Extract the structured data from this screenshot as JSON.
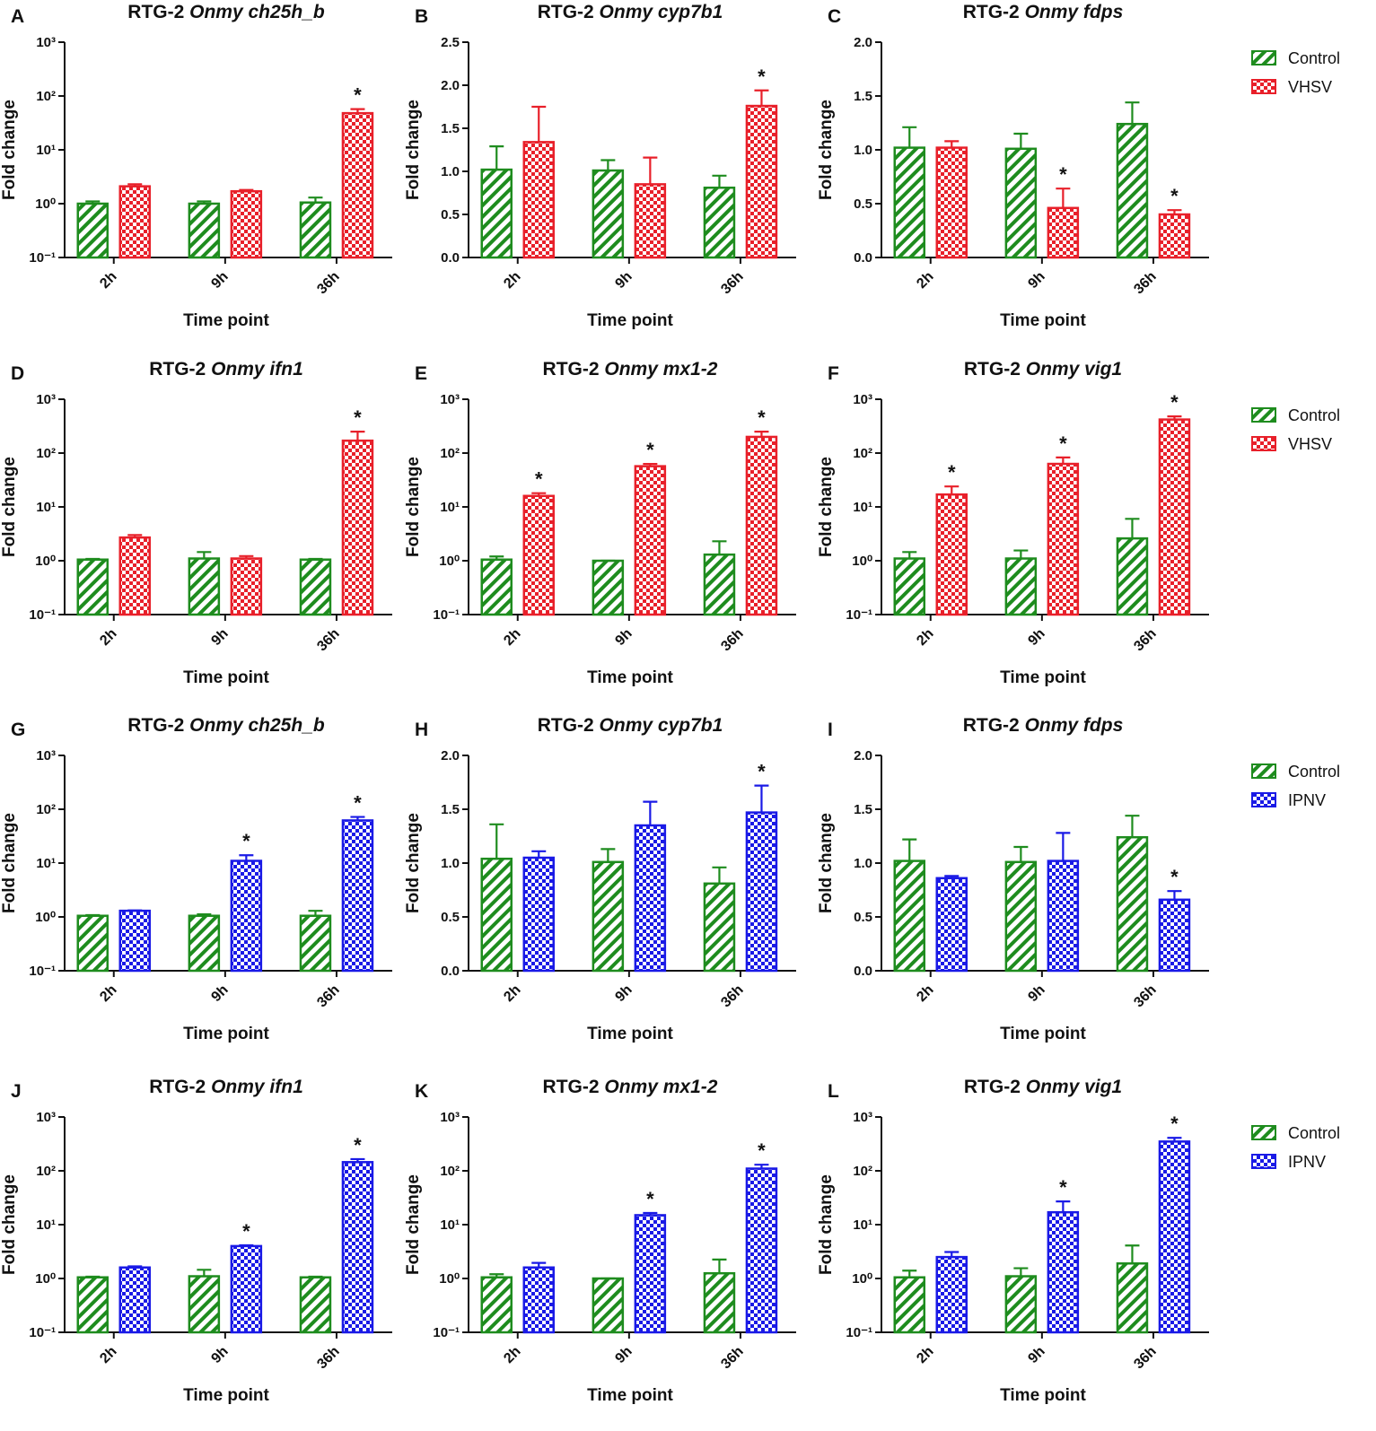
{
  "chart_data": [
    {
      "type": "bar",
      "panel": "A",
      "title": "RTG-2",
      "title_italic": "Onmy ch25h_b",
      "ylabel": "Fold change",
      "xlabel": "Time point",
      "log": true,
      "categories": [
        "2h",
        "9h",
        "36h"
      ],
      "ylim": [
        0.1,
        1000
      ],
      "yticks": [
        {
          "value": 0.1,
          "label": "10⁻¹"
        },
        {
          "value": 1,
          "label": "10⁰"
        },
        {
          "value": 10,
          "label": "10¹"
        },
        {
          "value": 100,
          "label": "10²"
        },
        {
          "value": 1000,
          "label": "10³"
        }
      ],
      "series": [
        {
          "name": "Control",
          "color": "#1e8c1e",
          "pattern": "hatch",
          "values": [
            1.0,
            1.0,
            1.05
          ],
          "errors": [
            0.1,
            0.1,
            0.25
          ],
          "annotations": [
            null,
            null,
            null
          ]
        },
        {
          "name": "VHSV",
          "color": "#e8202a",
          "pattern": "checker",
          "values": [
            2.1,
            1.7,
            48
          ],
          "errors": [
            0.2,
            0.1,
            9
          ],
          "annotations": [
            null,
            null,
            "*"
          ]
        }
      ]
    },
    {
      "type": "bar",
      "panel": "B",
      "title": "RTG-2",
      "title_italic": "Onmy cyp7b1",
      "ylabel": "Fold change",
      "xlabel": "Time point",
      "log": false,
      "categories": [
        "2h",
        "9h",
        "36h"
      ],
      "ylim": [
        0,
        2.5
      ],
      "yticks": [
        {
          "value": 0,
          "label": "0.0"
        },
        {
          "value": 0.5,
          "label": "0.5"
        },
        {
          "value": 1,
          "label": "1.0"
        },
        {
          "value": 1.5,
          "label": "1.5"
        },
        {
          "value": 2,
          "label": "2.0"
        },
        {
          "value": 2.5,
          "label": "2.5"
        }
      ],
      "series": [
        {
          "name": "Control",
          "color": "#1e8c1e",
          "pattern": "hatch",
          "values": [
            1.02,
            1.01,
            0.81
          ],
          "errors": [
            0.27,
            0.12,
            0.14
          ],
          "annotations": [
            null,
            null,
            null
          ]
        },
        {
          "name": "VHSV",
          "color": "#e8202a",
          "pattern": "checker",
          "values": [
            1.34,
            0.85,
            1.76
          ],
          "errors": [
            0.41,
            0.31,
            0.18
          ],
          "annotations": [
            null,
            null,
            "*"
          ]
        }
      ]
    },
    {
      "type": "bar",
      "panel": "C",
      "title": "RTG-2",
      "title_italic": "Onmy fdps",
      "ylabel": "Fold change",
      "xlabel": "Time point",
      "log": false,
      "legend": "right",
      "categories": [
        "2h",
        "9h",
        "36h"
      ],
      "ylim": [
        0,
        2
      ],
      "yticks": [
        {
          "value": 0,
          "label": "0.0"
        },
        {
          "value": 0.5,
          "label": "0.5"
        },
        {
          "value": 1,
          "label": "1.0"
        },
        {
          "value": 1.5,
          "label": "1.5"
        },
        {
          "value": 2,
          "label": "2.0"
        }
      ],
      "series": [
        {
          "name": "Control",
          "color": "#1e8c1e",
          "pattern": "hatch",
          "values": [
            1.02,
            1.01,
            1.24
          ],
          "errors": [
            0.19,
            0.14,
            0.2
          ],
          "annotations": [
            null,
            null,
            null
          ]
        },
        {
          "name": "VHSV",
          "color": "#e8202a",
          "pattern": "checker",
          "values": [
            1.02,
            0.46,
            0.4
          ],
          "errors": [
            0.06,
            0.18,
            0.04
          ],
          "annotations": [
            null,
            "*",
            "*"
          ]
        }
      ]
    },
    {
      "type": "bar",
      "panel": "D",
      "title": "RTG-2",
      "title_italic": "Onmy ifn1",
      "ylabel": "Fold change",
      "xlabel": "Time point",
      "log": true,
      "categories": [
        "2h",
        "9h",
        "36h"
      ],
      "ylim": [
        0.1,
        1000
      ],
      "yticks": [
        {
          "value": 0.1,
          "label": "10⁻¹"
        },
        {
          "value": 1,
          "label": "10⁰"
        },
        {
          "value": 10,
          "label": "10¹"
        },
        {
          "value": 100,
          "label": "10²"
        },
        {
          "value": 1000,
          "label": "10³"
        }
      ],
      "series": [
        {
          "name": "Control",
          "color": "#1e8c1e",
          "pattern": "hatch",
          "values": [
            1.05,
            1.1,
            1.05
          ],
          "errors": [
            0.03,
            0.35,
            0.03
          ],
          "annotations": [
            null,
            null,
            null
          ]
        },
        {
          "name": "VHSV",
          "color": "#e8202a",
          "pattern": "checker",
          "values": [
            2.7,
            1.1,
            170
          ],
          "errors": [
            0.3,
            0.12,
            80
          ],
          "annotations": [
            null,
            null,
            "*"
          ]
        }
      ]
    },
    {
      "type": "bar",
      "panel": "E",
      "title": "RTG-2",
      "title_italic": "Onmy mx1-2",
      "ylabel": "Fold change",
      "xlabel": "Time point",
      "log": true,
      "categories": [
        "2h",
        "9h",
        "36h"
      ],
      "ylim": [
        0.1,
        1000
      ],
      "yticks": [
        {
          "value": 0.1,
          "label": "10⁻¹"
        },
        {
          "value": 1,
          "label": "10⁰"
        },
        {
          "value": 10,
          "label": "10¹"
        },
        {
          "value": 100,
          "label": "10²"
        },
        {
          "value": 1000,
          "label": "10³"
        }
      ],
      "series": [
        {
          "name": "Control",
          "color": "#1e8c1e",
          "pattern": "hatch",
          "values": [
            1.05,
            1.0,
            1.3
          ],
          "errors": [
            0.15,
            0,
            1.0
          ],
          "annotations": [
            null,
            null,
            null
          ]
        },
        {
          "name": "VHSV",
          "color": "#e8202a",
          "pattern": "checker",
          "values": [
            16,
            57,
            200
          ],
          "errors": [
            2,
            6,
            50
          ],
          "annotations": [
            "*",
            "*",
            "*"
          ]
        }
      ]
    },
    {
      "type": "bar",
      "panel": "F",
      "title": "RTG-2",
      "title_italic": "Onmy vig1",
      "ylabel": "Fold change",
      "xlabel": "Time point",
      "log": true,
      "legend": "right",
      "categories": [
        "2h",
        "9h",
        "36h"
      ],
      "ylim": [
        0.1,
        1000
      ],
      "yticks": [
        {
          "value": 0.1,
          "label": "10⁻¹"
        },
        {
          "value": 1,
          "label": "10⁰"
        },
        {
          "value": 10,
          "label": "10¹"
        },
        {
          "value": 100,
          "label": "10²"
        },
        {
          "value": 1000,
          "label": "10³"
        }
      ],
      "series": [
        {
          "name": "Control",
          "color": "#1e8c1e",
          "pattern": "hatch",
          "values": [
            1.1,
            1.1,
            2.6
          ],
          "errors": [
            0.35,
            0.45,
            3.4
          ],
          "annotations": [
            null,
            null,
            null
          ]
        },
        {
          "name": "VHSV",
          "color": "#e8202a",
          "pattern": "checker",
          "values": [
            17,
            63,
            420
          ],
          "errors": [
            7,
            20,
            60
          ],
          "annotations": [
            "*",
            "*",
            "*"
          ]
        }
      ]
    },
    {
      "type": "bar",
      "panel": "G",
      "title": "RTG-2",
      "title_italic": "Onmy ch25h_b",
      "ylabel": "Fold change",
      "xlabel": "Time point",
      "log": true,
      "categories": [
        "2h",
        "9h",
        "36h"
      ],
      "ylim": [
        0.1,
        1000
      ],
      "yticks": [
        {
          "value": 0.1,
          "label": "10⁻¹"
        },
        {
          "value": 1,
          "label": "10⁰"
        },
        {
          "value": 10,
          "label": "10¹"
        },
        {
          "value": 100,
          "label": "10²"
        },
        {
          "value": 1000,
          "label": "10³"
        }
      ],
      "series": [
        {
          "name": "Control",
          "color": "#1e8c1e",
          "pattern": "hatch",
          "values": [
            1.05,
            1.05,
            1.05
          ],
          "errors": [
            0.03,
            0.07,
            0.25
          ],
          "annotations": [
            null,
            null,
            null
          ]
        },
        {
          "name": "IPNV",
          "color": "#1a1ae6",
          "pattern": "checker",
          "values": [
            1.3,
            11,
            62
          ],
          "errors": [
            0.02,
            3,
            10
          ],
          "annotations": [
            null,
            "*",
            "*"
          ]
        }
      ]
    },
    {
      "type": "bar",
      "panel": "H",
      "title": "RTG-2",
      "title_italic": "Onmy cyp7b1",
      "ylabel": "Fold change",
      "xlabel": "Time point",
      "log": false,
      "categories": [
        "2h",
        "9h",
        "36h"
      ],
      "ylim": [
        0,
        2
      ],
      "yticks": [
        {
          "value": 0,
          "label": "0.0"
        },
        {
          "value": 0.5,
          "label": "0.5"
        },
        {
          "value": 1,
          "label": "1.0"
        },
        {
          "value": 1.5,
          "label": "1.5"
        },
        {
          "value": 2,
          "label": "2.0"
        }
      ],
      "series": [
        {
          "name": "Control",
          "color": "#1e8c1e",
          "pattern": "hatch",
          "values": [
            1.04,
            1.01,
            0.81
          ],
          "errors": [
            0.32,
            0.12,
            0.15
          ],
          "annotations": [
            null,
            null,
            null
          ]
        },
        {
          "name": "IPNV",
          "color": "#1a1ae6",
          "pattern": "checker",
          "values": [
            1.05,
            1.35,
            1.47
          ],
          "errors": [
            0.06,
            0.22,
            0.25
          ],
          "annotations": [
            null,
            null,
            "*"
          ]
        }
      ]
    },
    {
      "type": "bar",
      "panel": "I",
      "title": "RTG-2",
      "title_italic": "Onmy fdps",
      "ylabel": "Fold change",
      "xlabel": "Time point",
      "log": false,
      "legend": "right",
      "categories": [
        "2h",
        "9h",
        "36h"
      ],
      "ylim": [
        0,
        2
      ],
      "yticks": [
        {
          "value": 0,
          "label": "0.0"
        },
        {
          "value": 0.5,
          "label": "0.5"
        },
        {
          "value": 1,
          "label": "1.0"
        },
        {
          "value": 1.5,
          "label": "1.5"
        },
        {
          "value": 2,
          "label": "2.0"
        }
      ],
      "series": [
        {
          "name": "Control",
          "color": "#1e8c1e",
          "pattern": "hatch",
          "values": [
            1.02,
            1.01,
            1.24
          ],
          "errors": [
            0.2,
            0.14,
            0.2
          ],
          "annotations": [
            null,
            null,
            null
          ]
        },
        {
          "name": "IPNV",
          "color": "#1a1ae6",
          "pattern": "checker",
          "values": [
            0.86,
            1.02,
            0.66
          ],
          "errors": [
            0.02,
            0.26,
            0.08
          ],
          "annotations": [
            null,
            null,
            "*"
          ]
        }
      ]
    },
    {
      "type": "bar",
      "panel": "J",
      "title": "RTG-2",
      "title_italic": "Onmy ifn1",
      "ylabel": "Fold change",
      "xlabel": "Time point",
      "log": true,
      "categories": [
        "2h",
        "9h",
        "36h"
      ],
      "ylim": [
        0.1,
        1000
      ],
      "yticks": [
        {
          "value": 0.1,
          "label": "10⁻¹"
        },
        {
          "value": 1,
          "label": "10⁰"
        },
        {
          "value": 10,
          "label": "10¹"
        },
        {
          "value": 100,
          "label": "10²"
        },
        {
          "value": 1000,
          "label": "10³"
        }
      ],
      "series": [
        {
          "name": "Control",
          "color": "#1e8c1e",
          "pattern": "hatch",
          "values": [
            1.05,
            1.1,
            1.05
          ],
          "errors": [
            0.03,
            0.35,
            0.03
          ],
          "annotations": [
            null,
            null,
            null
          ]
        },
        {
          "name": "IPNV",
          "color": "#1a1ae6",
          "pattern": "checker",
          "values": [
            1.6,
            4.0,
            145
          ],
          "errors": [
            0.08,
            0.15,
            20
          ],
          "annotations": [
            null,
            "*",
            "*"
          ]
        }
      ]
    },
    {
      "type": "bar",
      "panel": "K",
      "title": "RTG-2",
      "title_italic": "Onmy mx1-2",
      "ylabel": "Fold change",
      "xlabel": "Time point",
      "log": true,
      "categories": [
        "2h",
        "9h",
        "36h"
      ],
      "ylim": [
        0.1,
        1000
      ],
      "yticks": [
        {
          "value": 0.1,
          "label": "10⁻¹"
        },
        {
          "value": 1,
          "label": "10⁰"
        },
        {
          "value": 10,
          "label": "10¹"
        },
        {
          "value": 100,
          "label": "10²"
        },
        {
          "value": 1000,
          "label": "10³"
        }
      ],
      "series": [
        {
          "name": "Control",
          "color": "#1e8c1e",
          "pattern": "hatch",
          "values": [
            1.05,
            1.0,
            1.25
          ],
          "errors": [
            0.15,
            0,
            1.0
          ],
          "annotations": [
            null,
            null,
            null
          ]
        },
        {
          "name": "IPNV",
          "color": "#1a1ae6",
          "pattern": "checker",
          "values": [
            1.6,
            15,
            110
          ],
          "errors": [
            0.35,
            1.5,
            20
          ],
          "annotations": [
            null,
            "*",
            "*"
          ]
        }
      ]
    },
    {
      "type": "bar",
      "panel": "L",
      "title": "RTG-2",
      "title_italic": "Onmy vig1",
      "ylabel": "Fold change",
      "xlabel": "Time point",
      "log": true,
      "legend": "right",
      "categories": [
        "2h",
        "9h",
        "36h"
      ],
      "ylim": [
        0.1,
        1000
      ],
      "yticks": [
        {
          "value": 0.1,
          "label": "10⁻¹"
        },
        {
          "value": 1,
          "label": "10⁰"
        },
        {
          "value": 10,
          "label": "10¹"
        },
        {
          "value": 100,
          "label": "10²"
        },
        {
          "value": 1000,
          "label": "10³"
        }
      ],
      "series": [
        {
          "name": "Control",
          "color": "#1e8c1e",
          "pattern": "hatch",
          "values": [
            1.05,
            1.1,
            1.9
          ],
          "errors": [
            0.35,
            0.45,
            2.2
          ],
          "annotations": [
            null,
            null,
            null
          ]
        },
        {
          "name": "IPNV",
          "color": "#1a1ae6",
          "pattern": "checker",
          "values": [
            2.5,
            17,
            350
          ],
          "errors": [
            0.6,
            10,
            60
          ],
          "annotations": [
            null,
            "*",
            "*"
          ]
        }
      ]
    }
  ]
}
